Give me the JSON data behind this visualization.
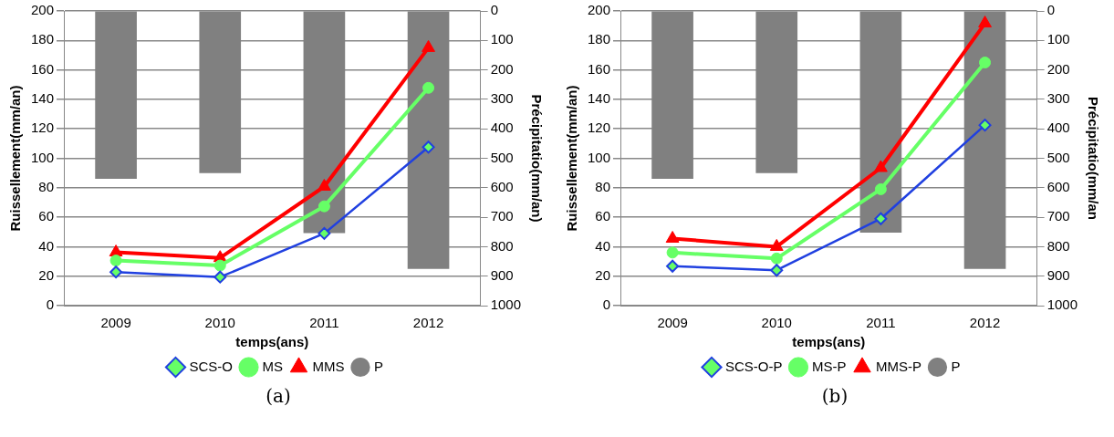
{
  "chart_data": [
    {
      "type": "line",
      "xlabel": "temps(ans)",
      "ylabel": "Ruissellement(mm/an)",
      "y2label": "Précipitatio(mm/an)",
      "categories": [
        "2009",
        "2010",
        "2011",
        "2012"
      ],
      "ylim": [
        0,
        200
      ],
      "yticks": [
        0,
        20,
        40,
        60,
        80,
        100,
        120,
        140,
        160,
        180,
        200
      ],
      "y2lim": [
        1000,
        0
      ],
      "y2ticks": [
        0,
        100,
        200,
        300,
        400,
        500,
        600,
        700,
        800,
        900,
        1000
      ],
      "grid": "y",
      "legend": "bottom",
      "annotations": [
        "(a)"
      ],
      "series": [
        {
          "name": "P",
          "type": "bar",
          "axis": "y2",
          "color": "#808080",
          "values": [
            570,
            550,
            754,
            875
          ]
        },
        {
          "name": "SCS-O",
          "color": "#2040e0",
          "marker": "diamond",
          "values": [
            22.8,
            19.4,
            49,
            107.6
          ]
        },
        {
          "name": "MS",
          "color": "#66ff66",
          "marker": "circle",
          "values": [
            30.6,
            27.2,
            67.4,
            147.8
          ]
        },
        {
          "name": "MMS",
          "color": "#ff0000",
          "marker": "triangle",
          "values": [
            36.2,
            32.4,
            80.8,
            175
          ]
        }
      ]
    },
    {
      "type": "line",
      "xlabel": "temps(ans)",
      "ylabel": "Ruissellement(mm/an)",
      "y2label": "Précipitatio(mm/an",
      "categories": [
        "2009",
        "2010",
        "2011",
        "2012"
      ],
      "ylim": [
        0,
        200
      ],
      "yticks": [
        0,
        20,
        40,
        60,
        80,
        100,
        120,
        140,
        160,
        180,
        200
      ],
      "y2lim": [
        1000,
        0
      ],
      "y2ticks": [
        0,
        100,
        200,
        300,
        400,
        500,
        600,
        700,
        800,
        900,
        1000
      ],
      "grid": "y",
      "legend": "bottom",
      "annotations": [
        "(b)"
      ],
      "series": [
        {
          "name": "P",
          "type": "bar",
          "axis": "y2",
          "color": "#808080",
          "values": [
            570,
            550,
            752,
            875
          ]
        },
        {
          "name": "SCS-O-P",
          "color": "#2040e0",
          "marker": "diamond",
          "values": [
            26.8,
            24,
            59,
            122.5
          ]
        },
        {
          "name": "MS-P",
          "color": "#66ff66",
          "marker": "circle",
          "values": [
            36,
            32,
            79,
            165
          ]
        },
        {
          "name": "MMS-P",
          "color": "#ff0000",
          "marker": "triangle",
          "values": [
            45.5,
            40,
            93.5,
            191.6
          ]
        }
      ]
    }
  ]
}
